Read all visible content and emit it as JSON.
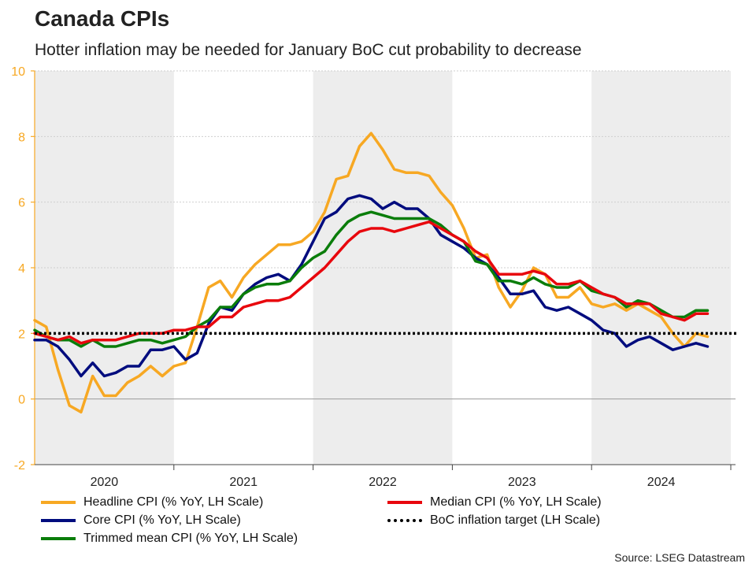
{
  "title": "Canada CPIs",
  "subtitle": "Hotter inflation may be needed for January BoC cut probability to decrease",
  "source": "Source: LSEG Datastream",
  "colors": {
    "headline": "#F7A823",
    "core": "#000C7E",
    "trimmed": "#0A7D0A",
    "median": "#E8070D",
    "target": "#000000",
    "axis": "#F7A823",
    "shade": "#EDEDED"
  },
  "legend": {
    "headline": "Headline CPI (% YoY, LH Scale)",
    "core": "Core CPI (% YoY, LH Scale)",
    "trimmed": "Trimmed mean CPI (% YoY, LH Scale)",
    "median": "Median CPI (% YoY, LH Scale)",
    "target": "BoC inflation target (LH Scale)"
  },
  "chart_data": {
    "type": "line",
    "title": "Canada CPIs",
    "ylim": [
      -2,
      10
    ],
    "yticks": [
      -2,
      0,
      2,
      4,
      6,
      8,
      10
    ],
    "xlim": [
      2019.5417,
      2024.5417
    ],
    "year_labels": [
      {
        "label": "2020",
        "center": 2020.0417
      },
      {
        "label": "2021",
        "center": 2021.0417
      },
      {
        "label": "2022",
        "center": 2022.0417
      },
      {
        "label": "2023",
        "center": 2023.0417
      },
      {
        "label": "2024",
        "center": 2024.0417
      }
    ],
    "year_bounds": [
      2020.5417,
      2021.5417,
      2022.5417,
      2023.5417,
      2024.5417
    ],
    "shaded_ranges": [
      [
        2019.5417,
        2020.5417
      ],
      [
        2021.5417,
        2022.5417
      ],
      [
        2023.5417,
        2024.5417
      ]
    ],
    "grid": true,
    "target_value": 2,
    "series": [
      {
        "key": "headline",
        "name": "Headline CPI (% YoY, LH Scale)",
        "start": 2019.5417,
        "values": [
          2.4,
          2.2,
          0.9,
          -0.2,
          -0.4,
          0.7,
          0.1,
          0.1,
          0.5,
          0.7,
          1.0,
          0.7,
          1.0,
          1.1,
          2.2,
          3.4,
          3.6,
          3.1,
          3.7,
          4.1,
          4.4,
          4.7,
          4.7,
          4.8,
          5.1,
          5.7,
          6.7,
          6.8,
          7.7,
          8.1,
          7.6,
          7.0,
          6.9,
          6.9,
          6.8,
          6.3,
          5.9,
          5.2,
          4.3,
          4.4,
          3.4,
          2.8,
          3.3,
          4.0,
          3.8,
          3.1,
          3.1,
          3.4,
          2.9,
          2.8,
          2.9,
          2.7,
          2.9,
          2.7,
          2.5,
          2.0,
          1.6,
          2.0,
          1.9
        ]
      },
      {
        "key": "core",
        "name": "Core CPI (% YoY, LH Scale)",
        "start": 2019.5417,
        "values": [
          1.8,
          1.8,
          1.6,
          1.2,
          0.7,
          1.1,
          0.7,
          0.8,
          1.0,
          1.0,
          1.5,
          1.5,
          1.6,
          1.2,
          1.4,
          2.3,
          2.8,
          2.7,
          3.2,
          3.5,
          3.7,
          3.8,
          3.6,
          4.1,
          4.8,
          5.5,
          5.7,
          6.1,
          6.2,
          6.1,
          5.8,
          6.0,
          5.8,
          5.8,
          5.5,
          5.0,
          4.8,
          4.6,
          4.3,
          4.1,
          3.7,
          3.2,
          3.2,
          3.3,
          2.8,
          2.7,
          2.8,
          2.6,
          2.4,
          2.1,
          2.0,
          1.6,
          1.8,
          1.9,
          1.7,
          1.5,
          1.6,
          1.7,
          1.6
        ]
      },
      {
        "key": "trimmed",
        "name": "Trimmed mean CPI (% YoY, LH Scale)",
        "start": 2019.5417,
        "values": [
          2.1,
          1.9,
          1.8,
          1.8,
          1.6,
          1.8,
          1.6,
          1.6,
          1.7,
          1.8,
          1.8,
          1.7,
          1.8,
          1.9,
          2.2,
          2.4,
          2.8,
          2.8,
          3.2,
          3.4,
          3.5,
          3.5,
          3.6,
          4.0,
          4.3,
          4.5,
          5.0,
          5.4,
          5.6,
          5.7,
          5.6,
          5.5,
          5.5,
          5.5,
          5.5,
          5.3,
          5.0,
          4.8,
          4.2,
          4.1,
          3.6,
          3.6,
          3.5,
          3.7,
          3.5,
          3.4,
          3.4,
          3.6,
          3.3,
          3.2,
          3.1,
          2.8,
          3.0,
          2.9,
          2.7,
          2.5,
          2.5,
          2.7,
          2.7
        ]
      },
      {
        "key": "median",
        "name": "Median CPI (% YoY, LH Scale)",
        "start": 2019.5417,
        "values": [
          2.0,
          1.9,
          1.8,
          1.9,
          1.7,
          1.8,
          1.8,
          1.8,
          1.9,
          2.0,
          2.0,
          2.0,
          2.1,
          2.1,
          2.2,
          2.2,
          2.5,
          2.5,
          2.8,
          2.9,
          3.0,
          3.0,
          3.1,
          3.4,
          3.7,
          4.0,
          4.4,
          4.8,
          5.1,
          5.2,
          5.2,
          5.1,
          5.2,
          5.3,
          5.4,
          5.2,
          5.0,
          4.8,
          4.5,
          4.3,
          3.8,
          3.8,
          3.8,
          3.9,
          3.8,
          3.5,
          3.5,
          3.6,
          3.4,
          3.2,
          3.1,
          2.9,
          2.9,
          2.9,
          2.6,
          2.5,
          2.4,
          2.6,
          2.6
        ]
      }
    ]
  }
}
